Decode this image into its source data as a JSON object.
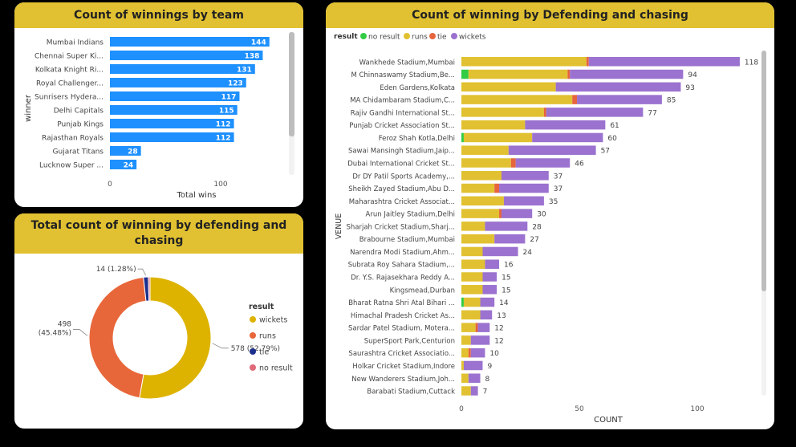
{
  "panels": {
    "team": {
      "title": "Count of winnings by team"
    },
    "donut": {
      "title_line1": "Total count of winning by defending and",
      "title_line2": "chasing"
    },
    "venue": {
      "title": "Count of winning by Defending and chasing"
    }
  },
  "colors": {
    "accent": "#E1C131",
    "team_bar": "#1E90FF",
    "runs_venue": "#E1C131",
    "wickets_venue": "#9B72CF",
    "tie_venue": "#E6653D",
    "no_result_venue": "#33CC44",
    "donut_wickets": "#DDB300",
    "donut_runs": "#E8673A",
    "donut_tie": "#1A2E8C",
    "donut_no_result": "#E06A7A"
  },
  "chart_data": [
    {
      "type": "bar",
      "orientation": "horizontal",
      "title": "Count of winnings by team",
      "xlabel": "Total wins",
      "ylabel": "winner",
      "categories": [
        "Mumbai Indians",
        "Chennai Super Ki...",
        "Kolkata Knight Ri...",
        "Royal Challenger...",
        "Sunrisers Hydera...",
        "Delhi Capitals",
        "Punjab Kings",
        "Rajasthan Royals",
        "Gujarat Titans",
        "Lucknow Super ..."
      ],
      "values": [
        144,
        138,
        131,
        123,
        117,
        115,
        112,
        112,
        28,
        24
      ],
      "x_ticks": [
        "0",
        "100"
      ],
      "xlim": [
        0,
        160
      ],
      "grid": false
    },
    {
      "type": "pie",
      "donut": true,
      "title": "Total count of winning by defending and chasing",
      "legend_title": "result",
      "legend_position": "right",
      "slices": [
        {
          "name": "wickets",
          "value": 578,
          "label": "578 (52.79%)"
        },
        {
          "name": "runs",
          "value": 498,
          "label_line1": "498",
          "label_line2": "(45.48%)"
        },
        {
          "name": "tie",
          "value": 14,
          "label": "14 (1.28%)"
        },
        {
          "name": "no result",
          "value": 5
        }
      ]
    },
    {
      "type": "bar",
      "orientation": "horizontal",
      "stacked": true,
      "title": "Count of winning by Defending and chasing",
      "xlabel": "COUNT",
      "ylabel": "VENUE",
      "legend_title": "result",
      "legend_position": "top-left",
      "legend": [
        "no result",
        "runs",
        "tie",
        "wickets"
      ],
      "x_ticks": [
        "0",
        "50",
        "100"
      ],
      "xlim": [
        0,
        120
      ],
      "grid": false,
      "categories": [
        "Wankhede Stadium,Mumbai",
        "M Chinnaswamy Stadium,Be...",
        "Eden Gardens,Kolkata",
        "MA Chidambaram Stadium,C...",
        "Rajiv Gandhi International St...",
        "Punjab Cricket Association St...",
        "Feroz Shah Kotla,Delhi",
        "Sawai Mansingh Stadium,Jaip...",
        "Dubai International Cricket St...",
        "Dr DY Patil Sports Academy,...",
        "Sheikh Zayed Stadium,Abu D...",
        "Maharashtra Cricket Associat...",
        "Arun Jaitley Stadium,Delhi",
        "Sharjah Cricket Stadium,Sharj...",
        "Brabourne Stadium,Mumbai",
        "Narendra Modi Stadium,Ahm...",
        "Subrata Roy Sahara Stadium,...",
        "Dr. Y.S. Rajasekhara Reddy A...",
        "Kingsmead,Durban",
        "Bharat Ratna Shri Atal Bihari ...",
        "Himachal Pradesh Cricket As...",
        "Sardar Patel Stadium, Motera...",
        "SuperSport Park,Centurion",
        "Saurashtra Cricket Associatio...",
        "Holkar Cricket Stadium,Indore",
        "New Wanderers Stadium,Joh...",
        "Barabati Stadium,Cuttack"
      ],
      "totals": [
        118,
        94,
        93,
        85,
        77,
        61,
        60,
        57,
        46,
        37,
        37,
        35,
        30,
        28,
        27,
        24,
        16,
        15,
        15,
        14,
        13,
        12,
        12,
        10,
        9,
        8,
        7
      ],
      "series": [
        {
          "name": "no result",
          "values": [
            0,
            3,
            0,
            0,
            0,
            0,
            1,
            0,
            0,
            0,
            0,
            0,
            0,
            0,
            0,
            0,
            0,
            0,
            0,
            1,
            0,
            0,
            0,
            0,
            0,
            0,
            0
          ]
        },
        {
          "name": "runs",
          "values": [
            53,
            42,
            40,
            47,
            35,
            27,
            29,
            20,
            21,
            17,
            14,
            18,
            16,
            10,
            14,
            9,
            10,
            9,
            9,
            7,
            8,
            6,
            4,
            3,
            1,
            3,
            4
          ]
        },
        {
          "name": "tie",
          "values": [
            1,
            1,
            0,
            2,
            1,
            0,
            0,
            0,
            2,
            0,
            2,
            0,
            1,
            0,
            0,
            0,
            0,
            0,
            0,
            0,
            0,
            1,
            0,
            1,
            0,
            0,
            0
          ]
        },
        {
          "name": "wickets",
          "values": [
            64,
            48,
            53,
            36,
            41,
            34,
            30,
            37,
            23,
            20,
            21,
            17,
            13,
            18,
            13,
            15,
            6,
            6,
            6,
            6,
            5,
            5,
            8,
            6,
            8,
            5,
            3
          ]
        }
      ]
    }
  ]
}
